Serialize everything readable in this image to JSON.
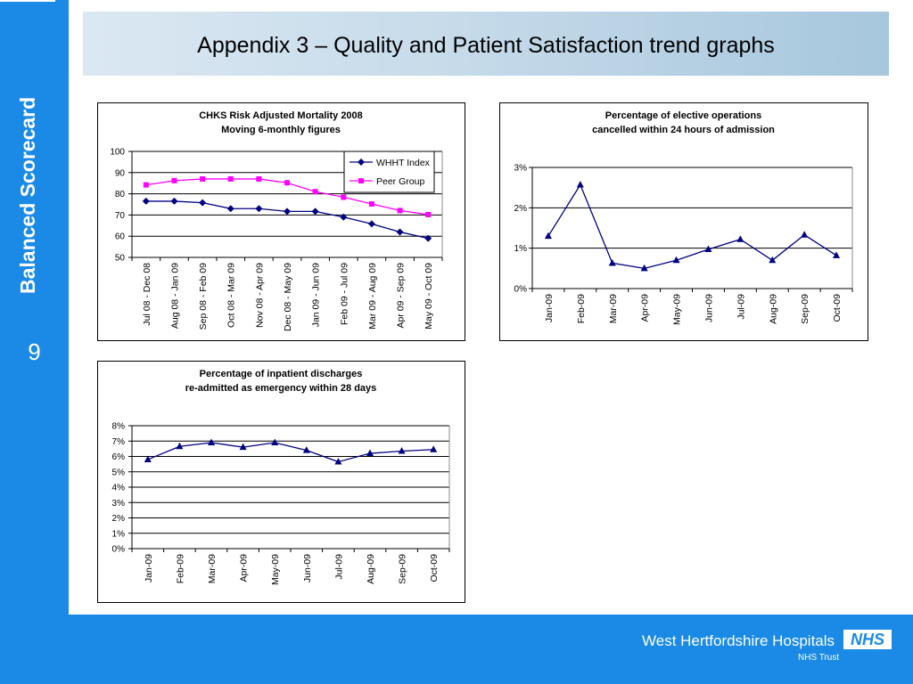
{
  "sidebar": {
    "title": "Balanced Scorecard",
    "page_number": "9"
  },
  "header": {
    "title": "Appendix 3 – Quality and Patient Satisfaction trend graphs"
  },
  "footer": {
    "organisation": "West Hertfordshire Hospitals",
    "trust": "NHS Trust",
    "logo_text": "NHS"
  },
  "colors": {
    "accent": "#1a8ae6",
    "series_whht": "#000080",
    "series_peer": "#ff00ff"
  },
  "chart_data": [
    {
      "type": "line",
      "title": [
        "CHKS Risk Adjusted Mortality 2008",
        "Moving 6-monthly figures"
      ],
      "categories": [
        "Jul 08 - Dec 08",
        "Aug 08 - Jan 09",
        "Sep 08 - Feb 09",
        "Oct 08 - Mar 09",
        "Nov 08 - Apr 09",
        "Dec 08 - May 09",
        "Jan 09 - Jun 09",
        "Feb 09 - Jul 09",
        "Mar 09 - Aug 09",
        "Apr 09 - Sep 09",
        "May 09 - Oct 09"
      ],
      "series": [
        {
          "name": "WHHT Index",
          "values": [
            76.5,
            76.5,
            75.8,
            73,
            73,
            71.7,
            71.7,
            69,
            65.8,
            62,
            59
          ],
          "color": "#000080",
          "marker": "diamond"
        },
        {
          "name": "Peer Group",
          "values": [
            84.2,
            86.2,
            87,
            87,
            87,
            85.2,
            81,
            78.4,
            75.2,
            72.1,
            70.2
          ],
          "color": "#ff00ff",
          "marker": "square"
        }
      ],
      "yticks": [
        "100",
        "90",
        "80",
        "70",
        "60",
        "50"
      ],
      "ylim": [
        50,
        100
      ],
      "legend": "top-right",
      "grid": true
    },
    {
      "type": "line",
      "title": [
        "Percentage of elective operations",
        "cancelled within 24 hours of admission"
      ],
      "categories": [
        "Jan-09",
        "Feb-09",
        "Mar-09",
        "Apr-09",
        "May-09",
        "Jun-09",
        "Jul-09",
        "Aug-09",
        "Sep-09",
        "Oct-09"
      ],
      "series": [
        {
          "values": [
            1.3,
            2.57,
            0.63,
            0.5,
            0.7,
            0.97,
            1.22,
            0.7,
            1.33,
            0.82
          ],
          "color": "#000080",
          "marker": "triangle"
        }
      ],
      "yticks": [
        "3%",
        "2%",
        "1%",
        "0%"
      ],
      "ylim": [
        0,
        3
      ],
      "grid": true
    },
    {
      "type": "line",
      "title": [
        "Percentage of inpatient discharges",
        "re-admitted as emergency within 28 days"
      ],
      "categories": [
        "Jan-09",
        "Feb-09",
        "Mar-09",
        "Apr-09",
        "May-09",
        "Jun-09",
        "Jul-09",
        "Aug-09",
        "Sep-09",
        "Oct-09"
      ],
      "series": [
        {
          "values": [
            5.8,
            6.65,
            6.9,
            6.6,
            6.9,
            6.4,
            5.65,
            6.2,
            6.35,
            6.45
          ],
          "color": "#000080",
          "marker": "triangle"
        }
      ],
      "yticks": [
        "8%",
        "7%",
        "6%",
        "5%",
        "4%",
        "3%",
        "2%",
        "1%",
        "0%"
      ],
      "ylim": [
        0,
        8
      ],
      "grid": true
    }
  ]
}
